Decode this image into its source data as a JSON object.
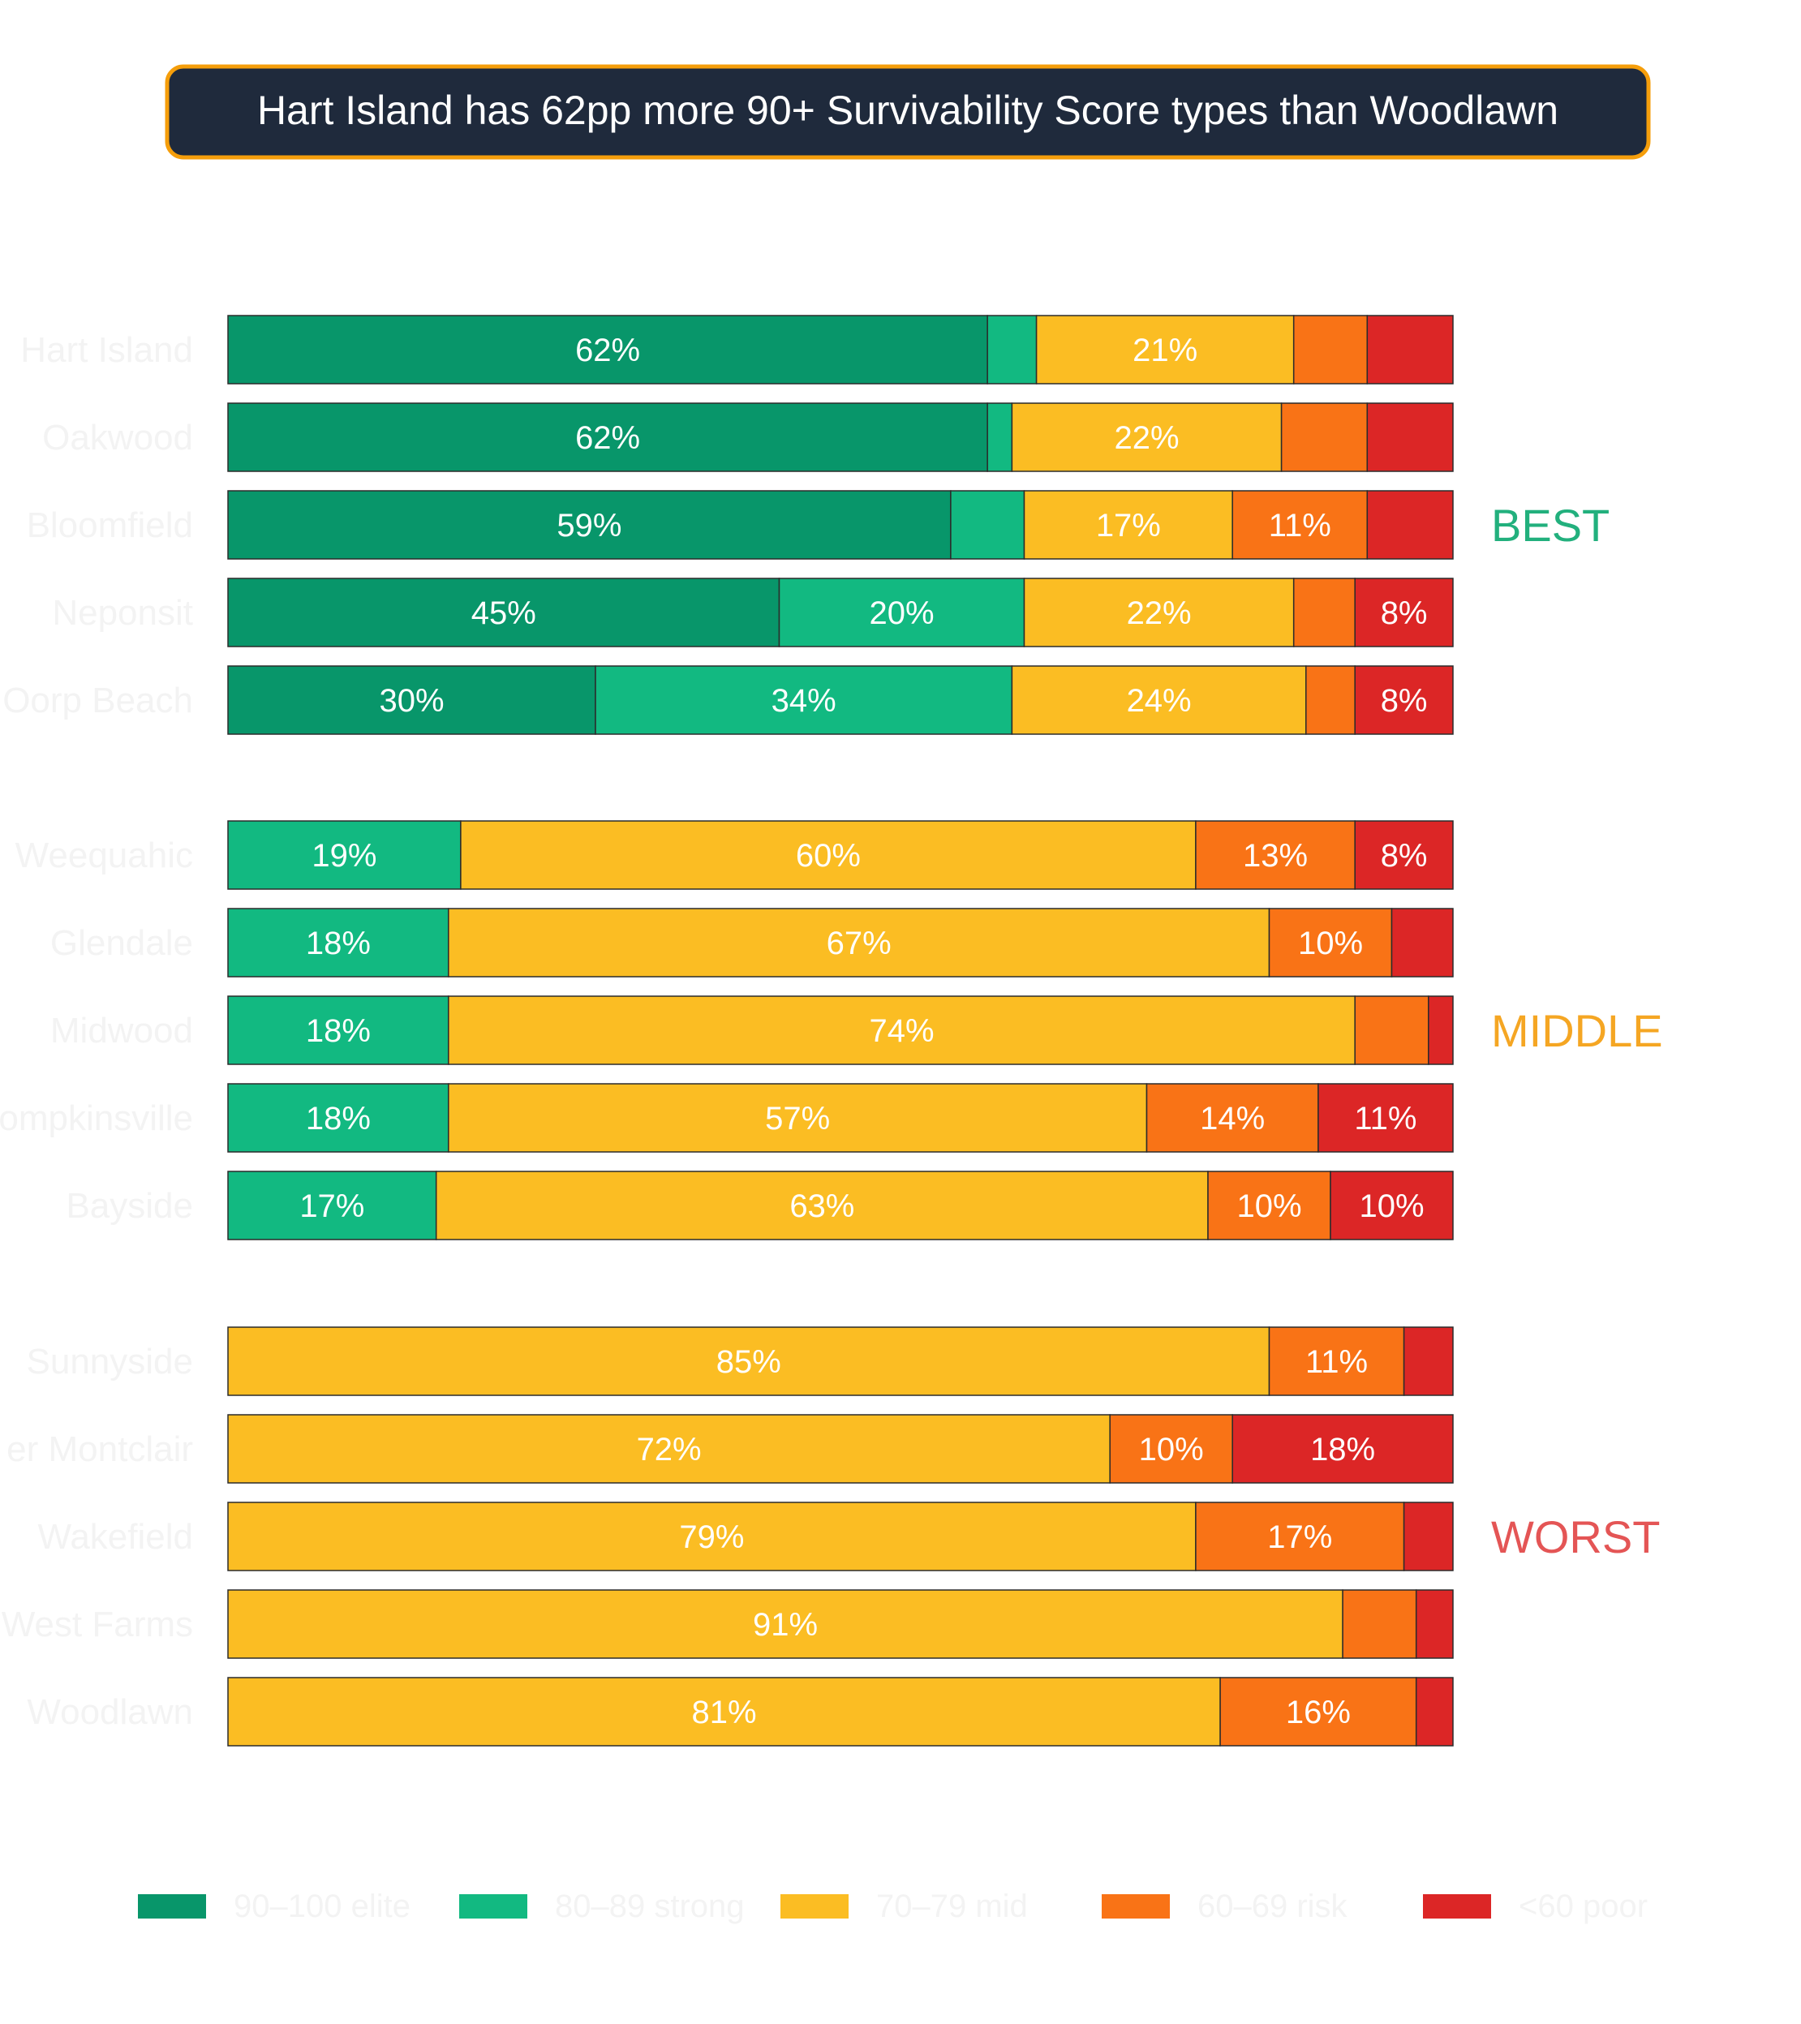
{
  "chart_data": {
    "type": "bar",
    "orientation": "horizontal",
    "stacked": true,
    "normalized": true,
    "title": "Hart Island has 62pp more 90+ Survivability Score types than Woodlawn",
    "categories": [
      "Hart Island",
      "Oakwood",
      "Bloomfield",
      "Neponsit",
      "Oorp Beach",
      "Weequahic",
      "Glendale",
      "Midwood",
      "ompkinsville",
      "Bayside",
      "Sunnyside",
      "er Montclair",
      "Wakefield",
      "West Farms",
      "Woodlawn"
    ],
    "groups": [
      {
        "label": "BEST",
        "color": "#22b07d",
        "rows": [
          0,
          1,
          2,
          3,
          4
        ]
      },
      {
        "label": "MIDDLE",
        "color": "#f5a623",
        "rows": [
          5,
          6,
          7,
          8,
          9
        ]
      },
      {
        "label": "WORST",
        "color": "#e45555",
        "rows": [
          10,
          11,
          12,
          13,
          14
        ]
      }
    ],
    "series": [
      {
        "name": "90–100 elite",
        "color": "#08966a",
        "values": [
          62,
          62,
          59,
          45,
          30,
          0,
          0,
          0,
          0,
          0,
          0,
          0,
          0,
          0,
          0
        ]
      },
      {
        "name": "80–89 strong",
        "color": "#12b981",
        "values": [
          4,
          2,
          6,
          20,
          34,
          19,
          18,
          18,
          18,
          17,
          0,
          0,
          0,
          0,
          0
        ]
      },
      {
        "name": "70–79 mid",
        "color": "#fbbd23",
        "values": [
          21,
          22,
          17,
          22,
          24,
          60,
          67,
          74,
          57,
          63,
          85,
          72,
          79,
          91,
          81
        ]
      },
      {
        "name": "60–69 risk",
        "color": "#f97316",
        "values": [
          6,
          7,
          11,
          5,
          4,
          13,
          10,
          6,
          14,
          10,
          11,
          10,
          17,
          6,
          16
        ]
      },
      {
        "name": "<60 poor",
        "color": "#dc2626",
        "values": [
          7,
          7,
          7,
          8,
          8,
          8,
          5,
          2,
          11,
          10,
          4,
          18,
          4,
          3,
          3
        ]
      }
    ],
    "xlim": [
      0,
      100
    ],
    "label_threshold": 8,
    "label_format": "%",
    "legend_position": "bottom",
    "grid": false
  }
}
